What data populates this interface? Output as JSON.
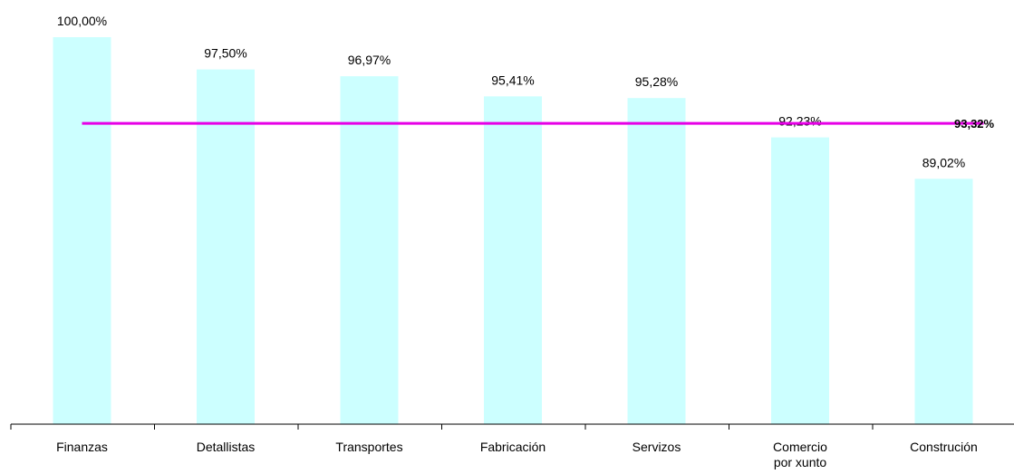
{
  "chart_data": {
    "type": "bar",
    "categories": [
      [
        "Finanzas"
      ],
      [
        "Detallistas"
      ],
      [
        "Transportes"
      ],
      [
        "Fabricación"
      ],
      [
        "Servizos"
      ],
      [
        "Comercio",
        "por xunto"
      ],
      [
        "Construción"
      ]
    ],
    "values": [
      100.0,
      97.5,
      96.97,
      95.41,
      95.28,
      92.23,
      89.02
    ],
    "value_labels": [
      "100,00%",
      "97,50%",
      "96,97%",
      "95,41%",
      "95,28%",
      "92,23%",
      "89,02%"
    ],
    "reference_line": {
      "value": 93.32,
      "label": "93,32%",
      "color": "#e600e6"
    },
    "bar_color": "#ccffff",
    "ylim": [
      70,
      100
    ],
    "title": "",
    "xlabel": "",
    "ylabel": "",
    "grid": false,
    "legend": "none"
  }
}
